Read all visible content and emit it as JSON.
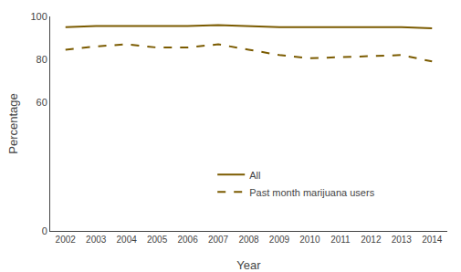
{
  "chart_data": {
    "type": "line",
    "x": [
      2002,
      2003,
      2004,
      2005,
      2006,
      2007,
      2008,
      2009,
      2010,
      2011,
      2012,
      2013,
      2014
    ],
    "series": [
      {
        "name": "All",
        "color": "#7B5B00",
        "line_style": "solid",
        "values": [
          95.0,
          95.5,
          95.5,
          95.5,
          95.5,
          96.0,
          95.5,
          95.0,
          95.0,
          95.0,
          95.0,
          95.0,
          94.5
        ]
      },
      {
        "name": "Past month marijuana users",
        "color": "#7B5B00",
        "line_style": "dashed",
        "values": [
          84.5,
          86.0,
          87.0,
          85.5,
          85.5,
          87.0,
          84.5,
          82.0,
          80.5,
          81.0,
          81.5,
          82.0,
          79.0
        ]
      }
    ],
    "xlabel": "Year",
    "ylabel": "Percentage",
    "xlim": [
      2001.5,
      2014.5
    ],
    "xticks": [
      2002,
      2003,
      2004,
      2005,
      2006,
      2007,
      2008,
      2009,
      2010,
      2011,
      2012,
      2013,
      2014
    ],
    "ylim": [
      0,
      100
    ],
    "yticks": [
      0,
      60,
      80,
      100
    ],
    "grid": false,
    "legend": "lower center"
  }
}
